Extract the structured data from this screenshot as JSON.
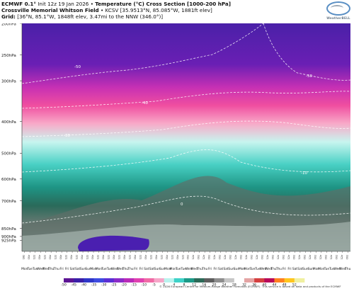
{
  "header": {
    "model": "ECMWF 0.1°",
    "init": "Init 12z 19 Jan 2026",
    "product": "Temperature (°C) Cross Section [1000-200 hPa]",
    "station": "Crossville Memorial Whitson Field",
    "station_info": "KCSV [35.9513°N, 85.085°W, 1881ft elev]",
    "grid_label": "Grid:",
    "grid_info": "[36°N, 85.1°W, 1848ft elev, 3.47mi to the NNW (346.0°)]",
    "logo_text": "WeatherBELL"
  },
  "footer": {
    "copyright": "© 2026 European Centre for Medium-Range Weather Forecasts (ECMWF). This service is based on data and products of the ECMWF"
  },
  "chart_data": {
    "type": "heatmap",
    "title": "Temperature (°C) Cross Section [1000-200 hPa]",
    "xlabel": "",
    "ylabel": "",
    "y_scale": "log",
    "y_inverted": true,
    "y_ticks": [
      {
        "p": 200,
        "label": "200hPa"
      },
      {
        "p": 250,
        "label": "250hPa"
      },
      {
        "p": 300,
        "label": "300hPa"
      },
      {
        "p": 400,
        "label": "400hPa"
      },
      {
        "p": 500,
        "label": "500hPa"
      },
      {
        "p": 600,
        "label": "600hPa"
      },
      {
        "p": 700,
        "label": "700hPa"
      },
      {
        "p": 850,
        "label": "850hPa"
      },
      {
        "p": 900,
        "label": "900hPa"
      },
      {
        "p": 925,
        "label": "925hPa"
      }
    ],
    "ylim": [
      1000,
      200
    ],
    "x_days": [
      "Mon",
      "Tue",
      "Tue",
      "Wed",
      "Wed",
      "Thu",
      "Thu",
      "Fri",
      "Fri",
      "Sat",
      "Sat",
      "Sun",
      "Sun",
      "Mon",
      "Mon",
      "Tue",
      "Tue",
      "Wed",
      "Wed",
      "Thu",
      "Thu",
      "Fri",
      "Fri",
      "Sat",
      "Sat",
      "Sun",
      "Sun",
      "Mon",
      "Mon",
      "Tue",
      "Tue",
      "Wed",
      "Wed",
      "Thu",
      "Thu",
      "Fri",
      "Fri",
      "Sat",
      "Sat",
      "Sun",
      "Sun",
      "Mon",
      "Mon",
      "Tue",
      "Tue",
      "Wed",
      "Wed",
      "Thu",
      "Thu",
      "Fri",
      "Fri",
      "Sat",
      "Sat",
      "Sun",
      "Sun",
      "Mon",
      "Mon",
      "Tue",
      "Tue",
      "Wed",
      "Wed",
      "Thu"
    ],
    "x_times": [
      "18z",
      "00z",
      "12z",
      "00z",
      "12z",
      "00z",
      "12z",
      "00z",
      "12z",
      "00z",
      "12z",
      "00z",
      "12z",
      "00z",
      "12z",
      "00z",
      "12z",
      "00z",
      "12z",
      "00z",
      "12z",
      "00z",
      "12z",
      "00z",
      "12z",
      "00z",
      "12z",
      "00z",
      "12z",
      "00z",
      "12z",
      "00z",
      "12z",
      "00z",
      "12z",
      "00z",
      "12z",
      "00z",
      "12z",
      "00z",
      "12z",
      "00z",
      "12z",
      "00z",
      "12z",
      "00z",
      "12z",
      "00z",
      "12z",
      "00z",
      "12z",
      "00z",
      "12z",
      "00z",
      "12z",
      "00z",
      "12z",
      "00z",
      "12z",
      "00z",
      "12z",
      "00z"
    ],
    "contours": [
      {
        "label": "-50",
        "level": -50
      },
      {
        "label": "-50",
        "level": -50
      },
      {
        "label": "-40",
        "level": -40
      },
      {
        "label": "-30",
        "level": -30
      },
      {
        "label": "-10",
        "level": -10
      },
      {
        "label": "0",
        "level": 0
      }
    ],
    "colorbar": {
      "ticks": [
        "-50",
        "-45",
        "-40",
        "-35",
        "-30",
        "-25",
        "-20",
        "-15",
        "-10",
        "-5",
        "0",
        "4",
        "8",
        "12",
        "16",
        "20",
        "24",
        "28",
        "32",
        "36",
        "40",
        "44",
        "48",
        "52"
      ],
      "colors": [
        "#5c1494",
        "#3b1fa8",
        "#2f36c8",
        "#3e4be0",
        "#5b2fd4",
        "#8a2bc8",
        "#b82ab8",
        "#df40b0",
        "#f06aa6",
        "#f6a6c8",
        "#b9f3ee",
        "#3fd2c8",
        "#1d9a88",
        "#2c6a58",
        "#5e5e5e",
        "#8e8e8e",
        "#c6c6c6",
        "#ffffff",
        "#e4a4a4",
        "#d44040",
        "#b80a5a",
        "#ff8020",
        "#ffc61e",
        "#f0f0a0"
      ]
    },
    "series": []
  }
}
